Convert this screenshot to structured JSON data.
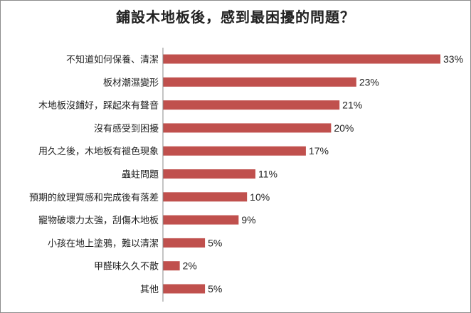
{
  "chart_data": {
    "type": "bar",
    "orientation": "horizontal",
    "title": "鋪設木地板後，感到最困擾的問題？",
    "categories": [
      "不知道如何保養、清潔",
      "板材潮濕變形",
      "木地板沒鋪好，踩起來有聲音",
      "沒有感受到困擾",
      "用久之後，木地板有褪色現象",
      "蟲蛀問題",
      "預期的紋理質感和完成後有落差",
      "寵物破壞力太強，刮傷木地板",
      "小孩在地上塗鴉，難以清潔",
      "甲醛味久久不散",
      "其他"
    ],
    "values": [
      33,
      23,
      21,
      20,
      17,
      11,
      10,
      9,
      5,
      2,
      5
    ],
    "value_labels": [
      "33%",
      "23%",
      "21%",
      "20%",
      "17%",
      "11%",
      "10%",
      "9%",
      "5%",
      "2%",
      "5%"
    ],
    "value_suffix": "%",
    "xlim": [
      0,
      33
    ],
    "grid": false,
    "legend": "none",
    "bar_color": "#c0504d",
    "axis_color": "#888888"
  }
}
